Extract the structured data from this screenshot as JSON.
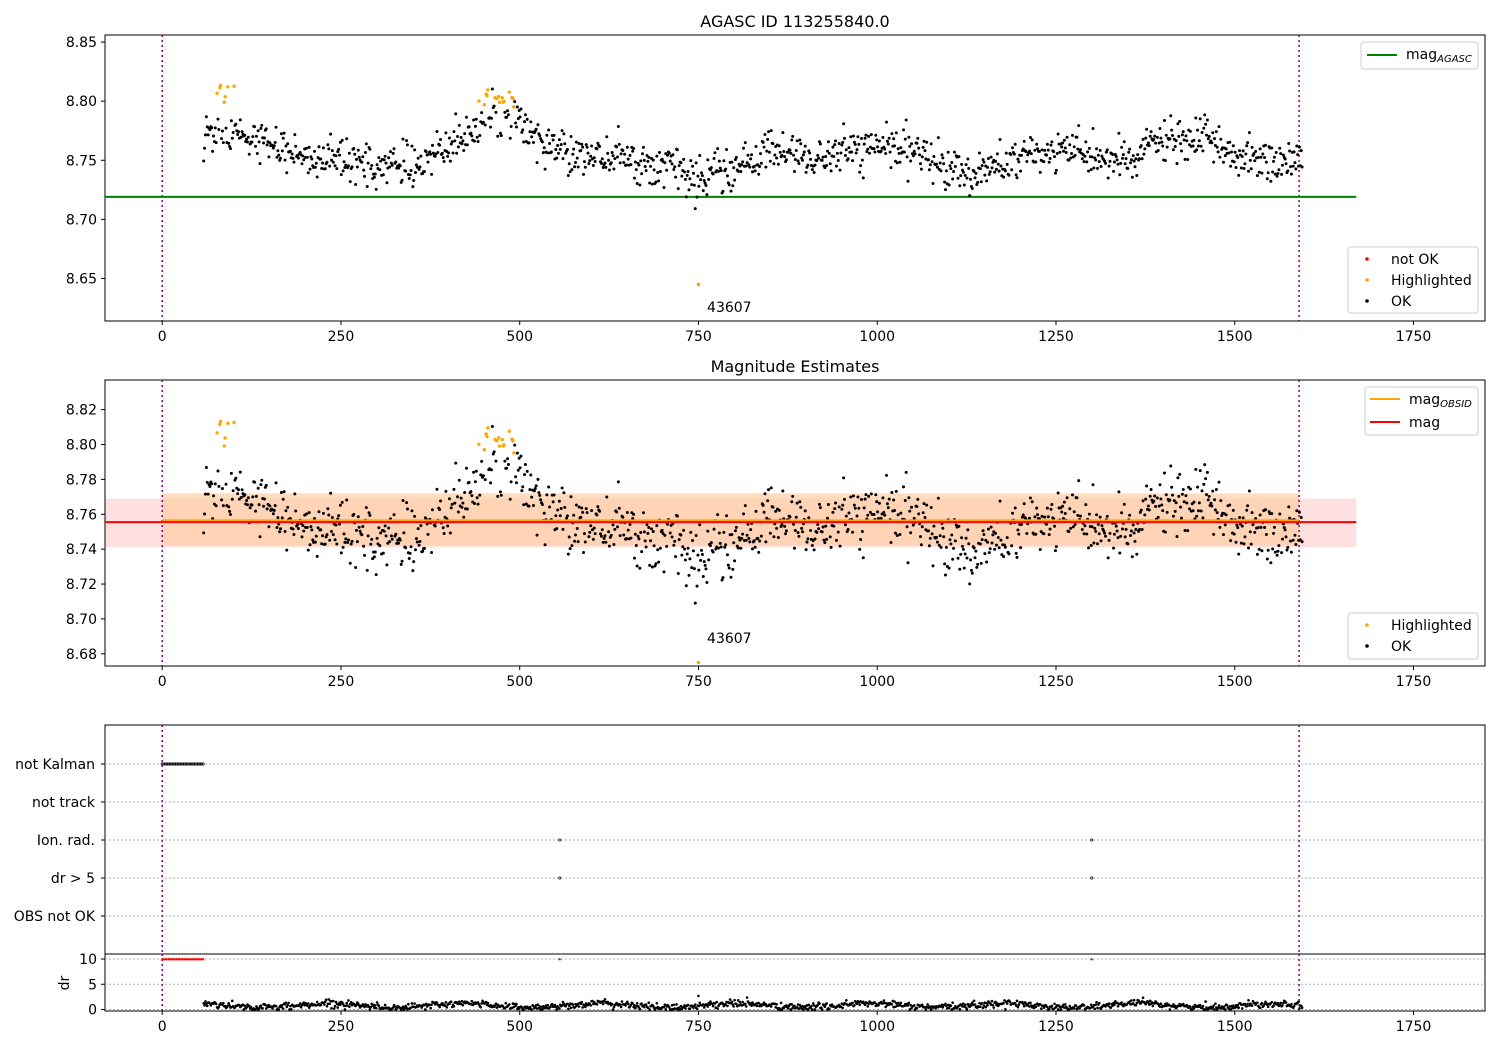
{
  "window": {
    "width_label": "",
    "title": ""
  },
  "chart_data": [
    {
      "id": "agasc",
      "type": "scatter",
      "title": "AGASC ID 113255840.0",
      "xlabel": "",
      "ylabel": "",
      "xlim": [
        -80,
        1850
      ],
      "ylim": [
        8.614,
        8.856
      ],
      "xticks": [
        0,
        250,
        500,
        750,
        1000,
        1250,
        1500,
        1750
      ],
      "yticks": [
        8.65,
        8.7,
        8.75,
        8.8,
        8.85
      ],
      "ytick_labels": [
        "8.65",
        "8.70",
        "8.75",
        "8.80",
        "8.85"
      ],
      "vlines": [
        0,
        1590
      ],
      "reference_line": {
        "label": "mag",
        "label_sub": "AGASC",
        "y": 8.719,
        "x_range": [
          -80,
          1670
        ],
        "color": "#008000"
      },
      "annotation": {
        "text": "43607",
        "x": 762,
        "y": 8.626
      },
      "highlighted_outlier": {
        "x": 750,
        "y": 8.645
      },
      "legend_lines_position": "upper-right",
      "legend_points_position": "lower-right",
      "legend_points": [
        {
          "label": "not OK",
          "color": "#ff0000"
        },
        {
          "label": "Highlighted",
          "color": "#ffa500"
        },
        {
          "label": "OK",
          "color": "#000000"
        }
      ],
      "series": [
        {
          "name": "OK",
          "color": "#000000",
          "x_range": [
            58,
            1595
          ],
          "count": 1240,
          "trend_note": "daily magnitude estimates between about 8.72 and 8.79"
        },
        {
          "name": "Highlighted",
          "color": "#ffa500",
          "segments": [
            [
              75,
              105,
              8.795,
              8.826
            ],
            [
              440,
              495,
              8.795,
              8.81
            ]
          ]
        }
      ]
    },
    {
      "id": "mag_estimates",
      "type": "scatter",
      "title": "Magnitude Estimates",
      "xlabel": "",
      "ylabel": "",
      "xlim": [
        -80,
        1850
      ],
      "ylim": [
        8.673,
        8.837
      ],
      "xticks": [
        0,
        250,
        500,
        750,
        1000,
        1250,
        1500,
        1750
      ],
      "yticks": [
        8.68,
        8.7,
        8.72,
        8.74,
        8.76,
        8.78,
        8.8,
        8.82
      ],
      "ytick_labels": [
        "8.68",
        "8.70",
        "8.72",
        "8.74",
        "8.76",
        "8.78",
        "8.80",
        "8.82"
      ],
      "vlines": [
        0,
        1590
      ],
      "mag_obsid": {
        "label": "mag",
        "label_sub": "OBSID",
        "y": 8.7565,
        "band": [
          8.742,
          8.772
        ],
        "x_range": [
          0,
          1590
        ],
        "color": "#ffa500"
      },
      "mag": {
        "label": "mag",
        "y": 8.7555,
        "band": [
          8.741,
          8.769
        ],
        "x_range": [
          -80,
          1670
        ],
        "color": "#ff0000"
      },
      "annotation": {
        "text": "43607",
        "x": 762,
        "y": 8.684
      },
      "highlighted_outlier": {
        "x": 750,
        "y": 8.675
      },
      "legend_lines_position": "upper-right",
      "legend_points_position": "lower-right",
      "legend_points": [
        {
          "label": "Highlighted",
          "color": "#ffa500"
        },
        {
          "label": "OK",
          "color": "#000000"
        }
      ]
    },
    {
      "id": "flags",
      "type": "scatter",
      "xlim": [
        -80,
        1850
      ],
      "categories": [
        "not Kalman",
        "not track",
        "Ion. rad.",
        "dr > 5",
        "OBS not OK"
      ],
      "flag_points": {
        "not Kalman": [
          [
            0,
            58
          ]
        ],
        "not track": [],
        "Ion. rad.": [
          [
            556,
            556
          ],
          [
            1300,
            1300
          ]
        ],
        "dr > 5": [
          [
            556,
            556
          ],
          [
            1300,
            1300
          ]
        ],
        "OBS not OK": []
      },
      "vlines": [
        0,
        1590
      ]
    },
    {
      "id": "dr",
      "type": "scatter",
      "ylabel": "dr",
      "xlim": [
        -80,
        1850
      ],
      "ylim": [
        -0.3,
        11
      ],
      "xticks": [
        0,
        250,
        500,
        750,
        1000,
        1250,
        1500,
        1750
      ],
      "yticks": [
        0,
        5,
        10
      ],
      "ytick_labels": [
        "0",
        "5",
        "10"
      ],
      "clipped_value": 10,
      "clipped_points": [
        [
          0,
          58
        ],
        [
          556,
          556
        ],
        [
          1300,
          1300
        ]
      ],
      "vlines": [
        0,
        1590
      ]
    }
  ]
}
